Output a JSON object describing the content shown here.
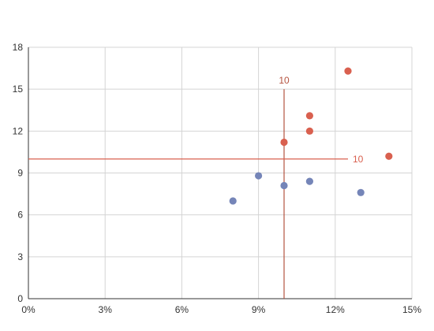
{
  "chart_data": {
    "type": "scatter",
    "title": "",
    "xlabel": "",
    "ylabel": "",
    "x_unit": "%",
    "xlim": [
      0,
      15
    ],
    "ylim": [
      0,
      18
    ],
    "x_ticks": [
      0,
      3,
      6,
      9,
      12,
      15
    ],
    "x_tick_labels": [
      "0%",
      "3%",
      "6%",
      "9%",
      "12%",
      "15%"
    ],
    "y_ticks": [
      0,
      3,
      6,
      9,
      12,
      15,
      18
    ],
    "y_tick_labels": [
      "0",
      "3",
      "6",
      "9",
      "12",
      "15",
      "18"
    ],
    "grid": true,
    "legend": "none",
    "series": [
      {
        "color": "#7585b8",
        "points": [
          {
            "x": 8,
            "y": 7.0
          },
          {
            "x": 9,
            "y": 8.8
          },
          {
            "x": 10,
            "y": 8.1
          },
          {
            "x": 11,
            "y": 8.4
          },
          {
            "x": 13,
            "y": 7.6
          }
        ]
      },
      {
        "color": "#d9604f",
        "points": [
          {
            "x": 10,
            "y": 11.2
          },
          {
            "x": 11,
            "y": 12.0
          },
          {
            "x": 11,
            "y": 13.1
          },
          {
            "x": 12.5,
            "y": 16.3
          },
          {
            "x": 14.1,
            "y": 10.2
          }
        ]
      }
    ],
    "reference_lines": [
      {
        "orientation": "vertical",
        "value": 10,
        "from": 0,
        "to": 15,
        "label": "10",
        "color": "#b5533f"
      },
      {
        "orientation": "horizontal",
        "value": 10,
        "from": 0,
        "to": 12.5,
        "label": "10",
        "color": "#d9604f"
      }
    ]
  }
}
